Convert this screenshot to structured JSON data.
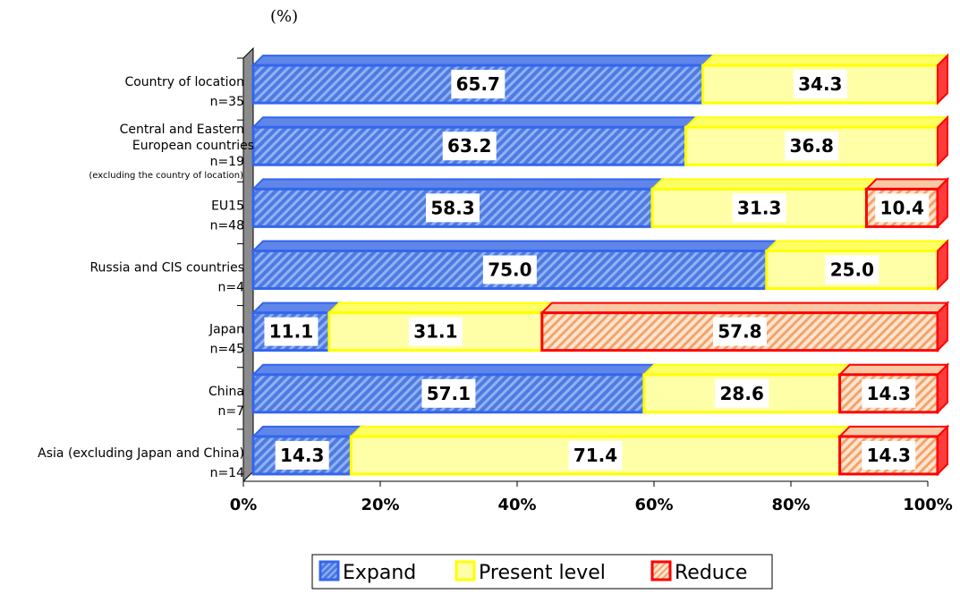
{
  "chart_data": {
    "type": "bar",
    "orientation": "horizontal",
    "stacked": true,
    "unit_label": "(%)",
    "categories": [
      "Country of location",
      "Central and Eastern European countries",
      "EU15",
      "Russia and CIS countries",
      "Japan",
      "China",
      "Asia (excluding Japan and China)"
    ],
    "category_notes": [
      "",
      "(excluding the country of location)",
      "",
      "",
      "",
      "",
      ""
    ],
    "sample_sizes": [
      "n=35",
      "n=19",
      "n=48",
      "n=4",
      "n=45",
      "n=7",
      "n=14"
    ],
    "series": [
      {
        "name": "Expand",
        "values": [
          65.7,
          63.2,
          58.3,
          75.0,
          11.1,
          57.1,
          14.3
        ],
        "labels": [
          "65.7",
          "63.2",
          "58.3",
          "75.0",
          "11.1",
          "57.1",
          "14.3"
        ]
      },
      {
        "name": "Present level",
        "values": [
          34.3,
          36.8,
          31.3,
          25.0,
          31.1,
          28.6,
          71.4
        ],
        "labels": [
          "34.3",
          "36.8",
          "31.3",
          "25.0",
          "31.1",
          "28.6",
          "71.4"
        ]
      },
      {
        "name": "Reduce",
        "values": [
          0,
          0,
          10.4,
          0,
          57.8,
          14.3,
          14.3
        ],
        "labels": [
          "",
          "",
          "10.4",
          "",
          "57.8",
          "14.3",
          "14.3"
        ]
      }
    ],
    "x_ticks": [
      "0%",
      "20%",
      "40%",
      "60%",
      "80%",
      "100%"
    ],
    "xlim": [
      0,
      100
    ],
    "legend_position": "bottom",
    "colors": {
      "expand_fill": "#4f7ae0",
      "expand_stroke": "#3366ee",
      "present_fill": "#ffffa8",
      "present_stroke": "#ffff00",
      "reduce_fill": "#f7c9a3",
      "reduce_stroke": "#ff0000",
      "wall": "#8c8c8c"
    }
  }
}
